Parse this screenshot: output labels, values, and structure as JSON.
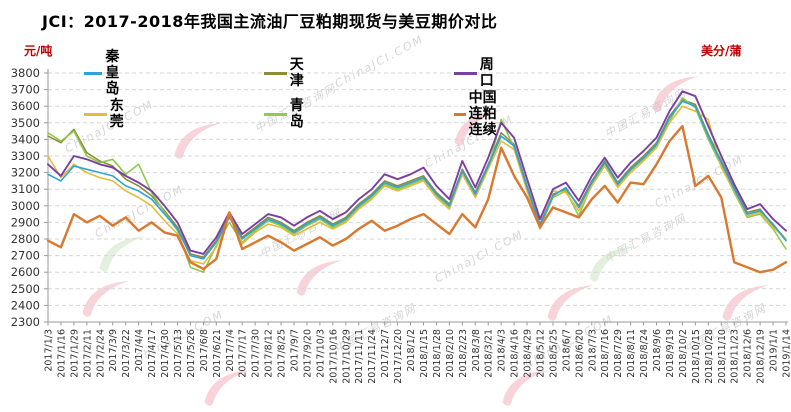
{
  "header": {
    "title": "JCI：2017-2018年我国主流油厂豆粕期现货与美豆期价对比"
  },
  "axes": {
    "left_unit": "元/吨",
    "right_unit": "美分/蒲"
  },
  "watermark": {
    "text_cn": "中国汇易咨询网",
    "text_en": "ChinaJCI.COM"
  },
  "chart_data": {
    "type": "line",
    "title": "JCI：2017-2018年我国主流油厂豆粕期现货与美豆期价对比",
    "ylabel": "元/吨",
    "y2label": "美分/蒲",
    "ylim": [
      2300,
      3800
    ],
    "ytick_step": 100,
    "yticks": [
      2300,
      2400,
      2500,
      2600,
      2700,
      2800,
      2900,
      3000,
      3100,
      3200,
      3300,
      3400,
      3500,
      3600,
      3700,
      3800
    ],
    "grid": true,
    "legend_position": "top-inside",
    "x": [
      "2017/1/3",
      "2017/1/16",
      "2017/1/29",
      "2017/2/11",
      "2017/2/24",
      "2017/3/9",
      "2017/3/22",
      "2017/4/4",
      "2017/4/17",
      "2017/4/30",
      "2017/5/13",
      "2017/5/26",
      "2017/6/8",
      "2017/6/21",
      "2017/7/4",
      "2017/7/17",
      "2017/7/30",
      "2017/8/12",
      "2017/8/25",
      "2017/9/7",
      "2017/9/20",
      "2017/10/3",
      "2017/10/16",
      "2017/10/29",
      "2017/11/11",
      "2017/11/24",
      "2017/12/7",
      "2017/12/20",
      "2018/1/2",
      "2018/1/15",
      "2018/1/28",
      "2018/2/10",
      "2018/2/23",
      "2018/3/8",
      "2018/3/21",
      "2018/4/3",
      "2018/4/16",
      "2018/4/29",
      "2018/5/12",
      "2018/5/25",
      "2018/6/7",
      "2018/6/20",
      "2018/7/3",
      "2018/7/16",
      "2018/7/29",
      "2018/8/11",
      "2018/8/24",
      "2018/9/6",
      "2018/9/19",
      "2018/10/2",
      "2018/10/15",
      "2018/10/28",
      "2018/11/10",
      "2018/11/23",
      "2018/12/6",
      "2018/12/19",
      "2019/1/1",
      "2019/1/14"
    ],
    "series": [
      {
        "key": "qinhuangdao",
        "label": "秦皇岛",
        "color": "#2ea3db",
        "values": [
          3190,
          3150,
          3240,
          3220,
          3200,
          3180,
          3120,
          3090,
          3040,
          2950,
          2860,
          2700,
          2680,
          2780,
          2930,
          2800,
          2860,
          2920,
          2890,
          2840,
          2890,
          2930,
          2880,
          2920,
          3000,
          3060,
          3140,
          3110,
          3140,
          3170,
          3070,
          3000,
          3210,
          3070,
          3240,
          3420,
          3360,
          3110,
          2880,
          3060,
          3110,
          2990,
          3140,
          3260,
          3130,
          3220,
          3290,
          3370,
          3530,
          3630,
          3600,
          3420,
          3260,
          3100,
          2950,
          2970,
          2890,
          2790
        ]
      },
      {
        "key": "tianjin",
        "label": "天津",
        "color": "#8c8c3a",
        "values": [
          3420,
          3380,
          3460,
          3320,
          3270,
          3240,
          3160,
          3120,
          3060,
          2970,
          2870,
          2710,
          2690,
          2790,
          2940,
          2810,
          2870,
          2930,
          2900,
          2850,
          2900,
          2940,
          2890,
          2930,
          3010,
          3070,
          3150,
          3120,
          3150,
          3180,
          3080,
          3010,
          3220,
          3080,
          3250,
          3440,
          3370,
          3120,
          2890,
          3070,
          3100,
          3000,
          3150,
          3270,
          3140,
          3230,
          3300,
          3380,
          3540,
          3640,
          3610,
          3430,
          3270,
          3110,
          2960,
          2980,
          2880,
          2800
        ]
      },
      {
        "key": "zhoukou",
        "label": "周口",
        "color": "#7b3fa0",
        "values": [
          3250,
          3180,
          3300,
          3280,
          3250,
          3230,
          3180,
          3140,
          3090,
          3000,
          2900,
          2730,
          2710,
          2810,
          2960,
          2830,
          2890,
          2950,
          2930,
          2880,
          2930,
          2970,
          2920,
          2960,
          3040,
          3100,
          3190,
          3160,
          3190,
          3230,
          3120,
          3040,
          3270,
          3110,
          3290,
          3500,
          3410,
          3160,
          2920,
          3100,
          3140,
          3030,
          3180,
          3290,
          3170,
          3260,
          3330,
          3410,
          3570,
          3690,
          3660,
          3480,
          3300,
          3130,
          2980,
          3010,
          2920,
          2850
        ]
      },
      {
        "key": "dongguan",
        "label": "东莞",
        "color": "#e3bd39",
        "values": [
          3300,
          3170,
          3250,
          3200,
          3170,
          3150,
          3090,
          3050,
          3000,
          2910,
          2830,
          2670,
          2650,
          2750,
          2950,
          2770,
          2840,
          2890,
          2870,
          2820,
          2860,
          2900,
          2860,
          2900,
          2980,
          3040,
          3120,
          3090,
          3120,
          3150,
          3050,
          2980,
          3190,
          3050,
          3220,
          3390,
          3340,
          3090,
          2860,
          3090,
          3080,
          2970,
          3120,
          3240,
          3110,
          3200,
          3270,
          3350,
          3500,
          3600,
          3570,
          3520,
          3230,
          3090,
          2940,
          2960,
          2870,
          2800
        ]
      },
      {
        "key": "qingdao",
        "label": "青岛",
        "color": "#8fc94f",
        "values": [
          3440,
          3390,
          3450,
          3300,
          3260,
          3280,
          3190,
          3250,
          3080,
          2960,
          2850,
          2630,
          2600,
          2760,
          2900,
          2780,
          2850,
          2910,
          2880,
          2830,
          2880,
          2920,
          2870,
          2910,
          2990,
          3050,
          3130,
          3100,
          3130,
          3160,
          3060,
          2990,
          3200,
          3060,
          3230,
          3520,
          3350,
          3100,
          2870,
          3050,
          3090,
          2940,
          3130,
          3250,
          3120,
          3210,
          3280,
          3360,
          3510,
          3650,
          3590,
          3400,
          3240,
          3080,
          2930,
          2950,
          2860,
          2740
        ]
      },
      {
        "key": "dalian_meal",
        "label": "中国连粕连续",
        "color": "#d9782e",
        "values": [
          2790,
          2750,
          2950,
          2900,
          2940,
          2880,
          2930,
          2850,
          2900,
          2840,
          2820,
          2660,
          2620,
          2680,
          2960,
          2740,
          2780,
          2820,
          2780,
          2730,
          2770,
          2810,
          2760,
          2800,
          2860,
          2910,
          2850,
          2880,
          2920,
          2950,
          2890,
          2830,
          2950,
          2870,
          3040,
          3350,
          3180,
          3050,
          2870,
          2990,
          2960,
          2930,
          3040,
          3120,
          3020,
          3140,
          3130,
          3250,
          3390,
          3480,
          3120,
          3180,
          3050,
          2660,
          2630,
          2600,
          2615,
          2660
        ]
      }
    ]
  }
}
